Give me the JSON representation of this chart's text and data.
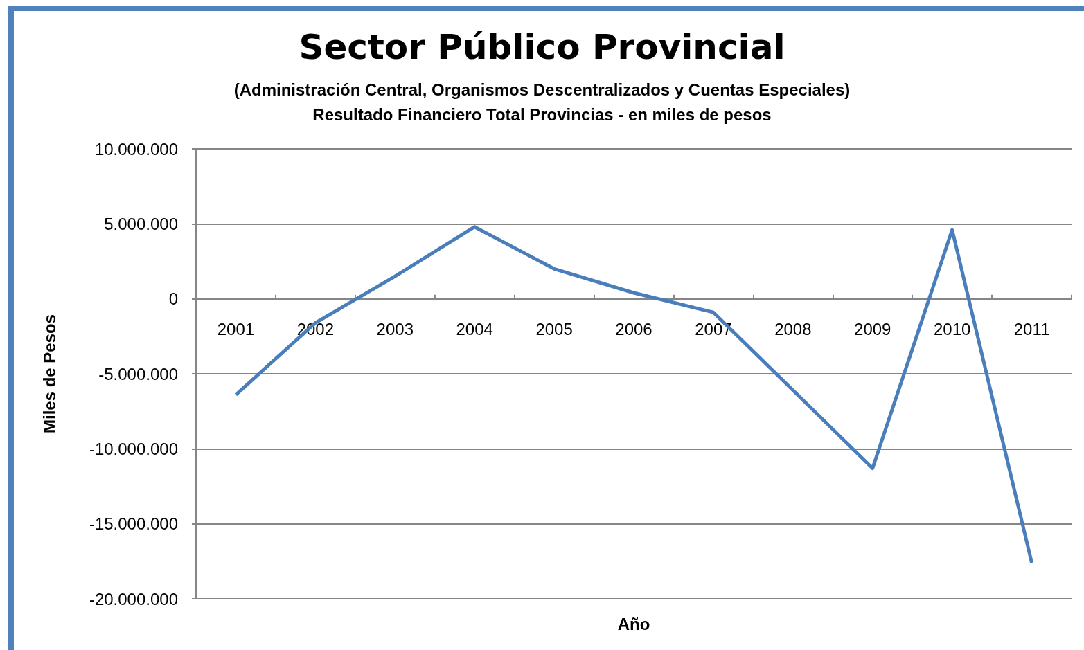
{
  "chart_data": {
    "type": "line",
    "title": "Sector Público Provincial",
    "subtitle": "(Administración Central, Organismos Descentralizados y Cuentas Especiales)\nResultado Financiero Total Provincias - en miles de pesos",
    "xlabel": "Año",
    "ylabel": "Miles de Pesos",
    "categories": [
      "2001",
      "2002",
      "2003",
      "2004",
      "2005",
      "2006",
      "2007",
      "2008",
      "2009",
      "2010",
      "2011"
    ],
    "series": [
      {
        "color": "#4a7ebb",
        "values": [
          -6400000,
          -1600000,
          1500000,
          4800000,
          2000000,
          400000,
          -900000,
          -6100000,
          -11300000,
          4600000,
          -17600000
        ]
      }
    ],
    "ylim": [
      -20000000,
      10000000
    ],
    "yticks": [
      {
        "value": -20000000,
        "label": "-20.000.000"
      },
      {
        "value": -15000000,
        "label": "-15.000.000"
      },
      {
        "value": -10000000,
        "label": "-10.000.000"
      },
      {
        "value": -5000000,
        "label": "-5.000.000"
      },
      {
        "value": 0,
        "label": "0"
      },
      {
        "value": 5000000,
        "label": "5.000.000"
      },
      {
        "value": 10000000,
        "label": "10.000.000"
      }
    ],
    "grid": "y",
    "marker": "none",
    "line_style": "solid"
  }
}
